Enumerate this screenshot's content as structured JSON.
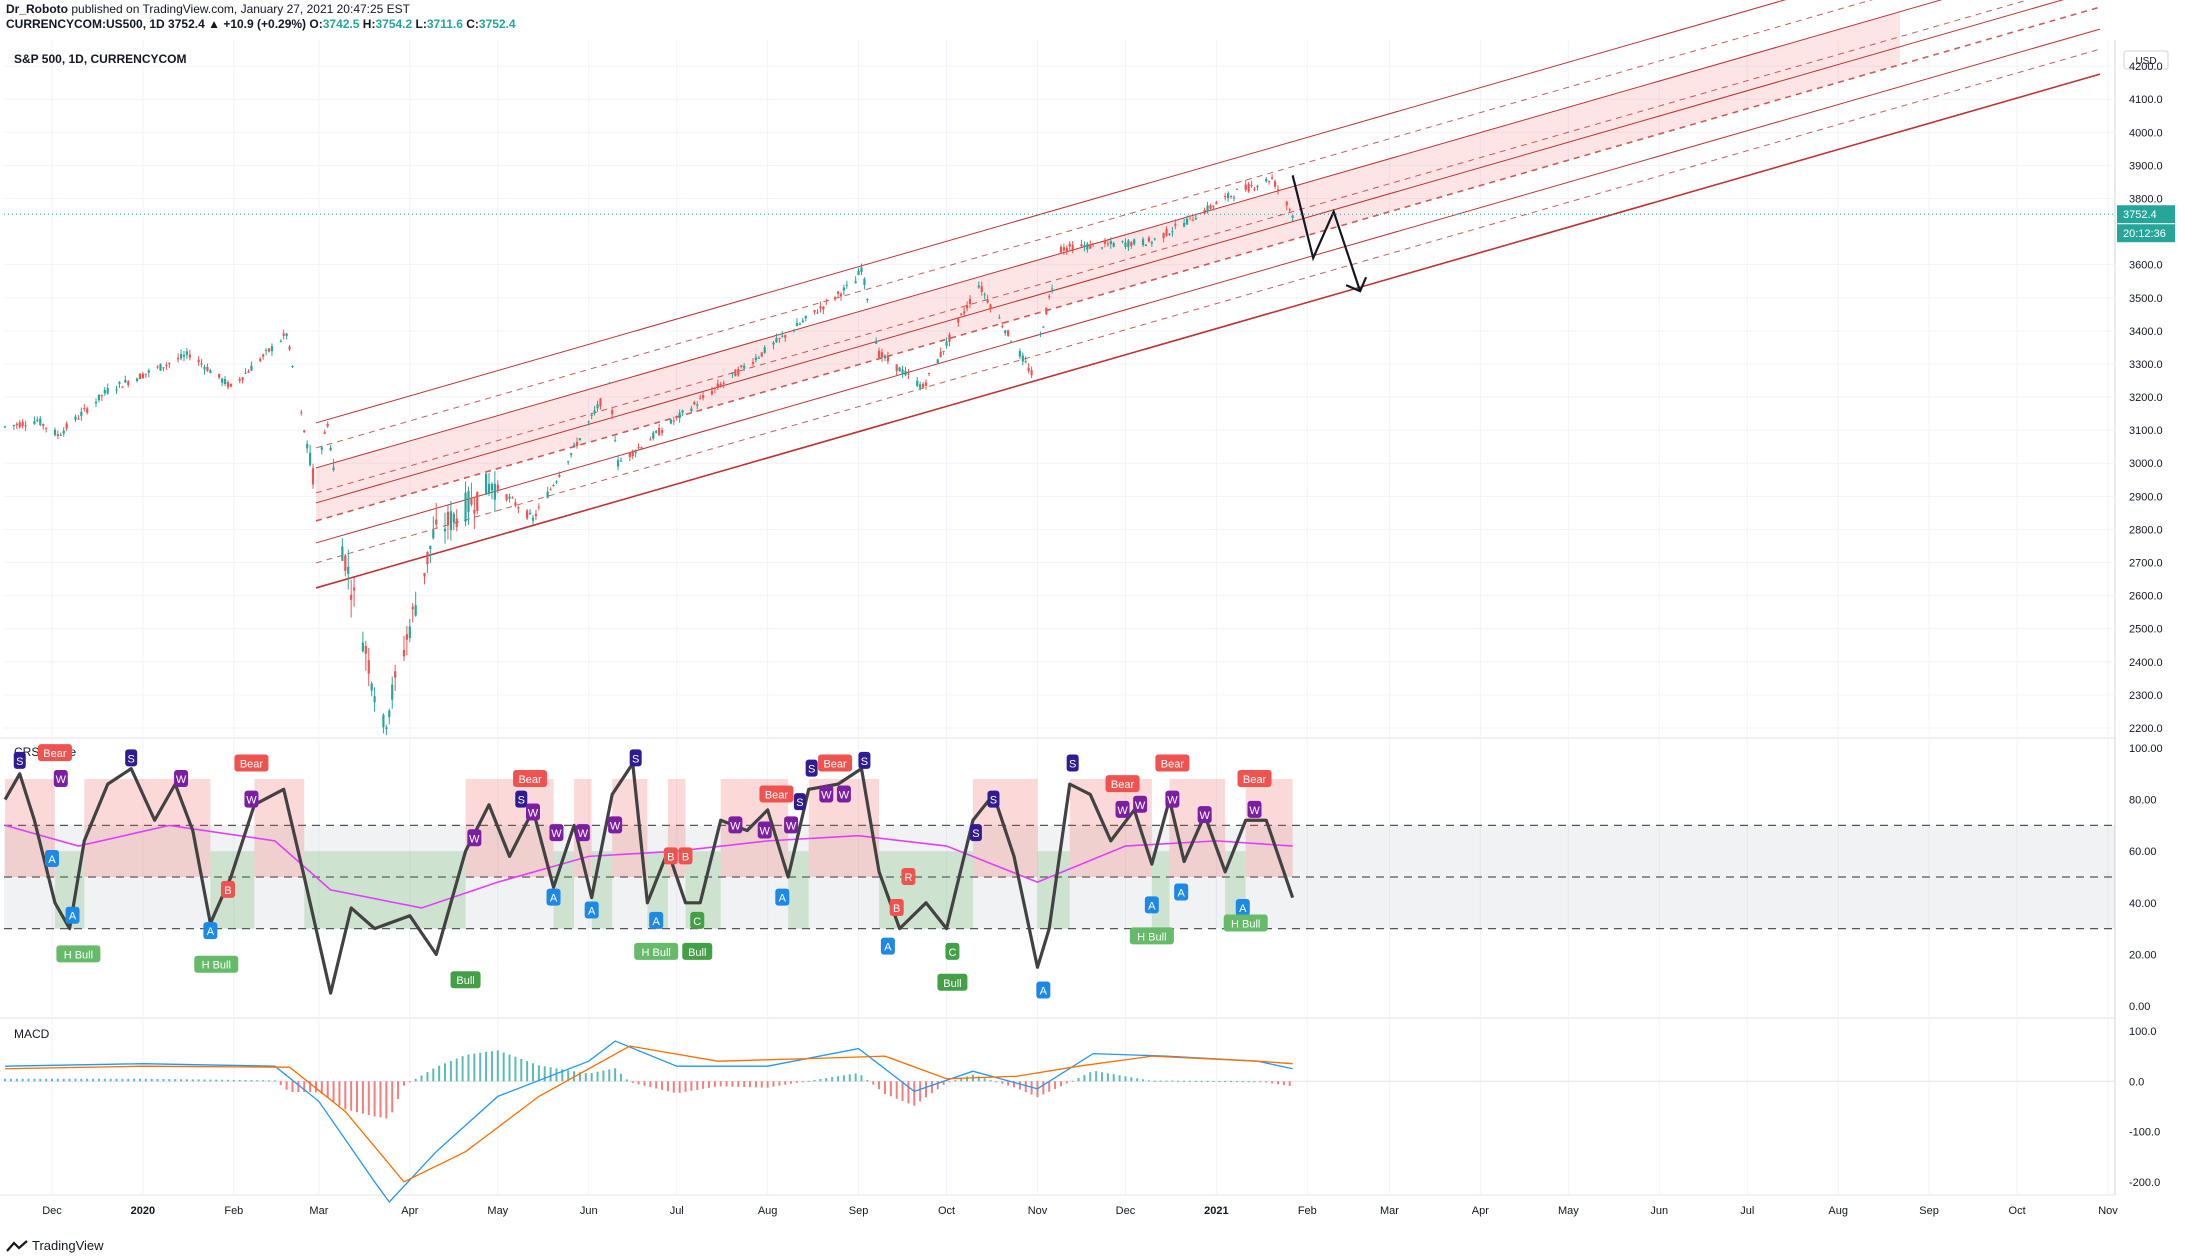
{
  "header": {
    "author": "Dr_Roboto",
    "published": "published on TradingView.com, January 27, 2021 20:47:25 EST",
    "symbol": "CURRENCYCOM:US500, 1D",
    "last": "3752.4",
    "change": "+10.9 (+0.29%)",
    "o_label": "O:",
    "o": "3742.5",
    "h_label": "H:",
    "h": "3754.2",
    "l_label": "L:",
    "l": "3711.6",
    "c_label": "C:",
    "c": "3752.4"
  },
  "chart_data": [
    {
      "type": "candlestick",
      "title": "S&P 500, 1D, CURRENCYCOM",
      "currency": "USD",
      "ylim": [
        2200,
        4300
      ],
      "yticks": [
        "4200.0",
        "4100.0",
        "4000.0",
        "3900.0",
        "3800.0",
        "3600.0",
        "3500.0",
        "3400.0",
        "3300.0",
        "3200.0",
        "3100.0",
        "3000.0",
        "2900.0",
        "2800.0",
        "2700.0",
        "2600.0",
        "2500.0",
        "2400.0",
        "2300.0",
        "2200.0"
      ],
      "price_label": "3752.4",
      "countdown_label": "20:12:36",
      "path_points": [
        [
          "2019-11-15",
          3110
        ],
        [
          "2019-11-26",
          3130
        ],
        [
          "2019-12-03",
          3085
        ],
        [
          "2019-12-20",
          3220
        ],
        [
          "2020-01-17",
          3330
        ],
        [
          "2020-01-31",
          3230
        ],
        [
          "2020-02-19",
          3390
        ],
        [
          "2020-02-28",
          2950
        ],
        [
          "2020-03-04",
          3120
        ],
        [
          "2020-03-09",
          2750
        ],
        [
          "2020-03-23",
          2200
        ],
        [
          "2020-04-09",
          2780
        ],
        [
          "2020-04-29",
          2940
        ],
        [
          "2020-05-13",
          2830
        ],
        [
          "2020-06-08",
          3230
        ],
        [
          "2020-06-11",
          3000
        ],
        [
          "2020-07-15",
          3230
        ],
        [
          "2020-08-31",
          3550
        ],
        [
          "2020-09-02",
          3590
        ],
        [
          "2020-09-08",
          3330
        ],
        [
          "2020-09-23",
          3230
        ],
        [
          "2020-10-12",
          3540
        ],
        [
          "2020-10-30",
          3270
        ],
        [
          "2020-11-09",
          3650
        ],
        [
          "2020-12-10",
          3670
        ],
        [
          "2021-01-08",
          3820
        ],
        [
          "2021-01-20",
          3860
        ],
        [
          "2021-01-27",
          3752
        ]
      ],
      "projection": [
        [
          "2021-01-27",
          3870
        ],
        [
          "2021-02-03",
          3620
        ],
        [
          "2021-02-10",
          3760
        ],
        [
          "2021-02-19",
          3520
        ]
      ]
    },
    {
      "type": "line",
      "title": "CRSI Wave",
      "ylim": [
        0,
        100
      ],
      "yticks": [
        "100.00",
        "80.00",
        "60.00",
        "40.00",
        "20.00",
        "0.00"
      ],
      "bands": [
        30,
        50,
        70
      ],
      "signals": [
        {
          "label": "Bear",
          "x": "2019-12-02",
          "y": 98
        },
        {
          "label": "S",
          "x": "2019-11-20",
          "y": 95
        },
        {
          "label": "W",
          "x": "2019-12-04",
          "y": 88
        },
        {
          "label": "A",
          "x": "2019-12-01",
          "y": 57
        },
        {
          "label": "A",
          "x": "2019-12-08",
          "y": 35
        },
        {
          "label": "H Bull",
          "x": "2019-12-10",
          "y": 20
        },
        {
          "label": "S",
          "x": "2019-12-28",
          "y": 96
        },
        {
          "label": "W",
          "x": "2020-01-14",
          "y": 88
        },
        {
          "label": "Bear",
          "x": "2020-02-07",
          "y": 94
        },
        {
          "label": "W",
          "x": "2020-02-07",
          "y": 80
        },
        {
          "label": "B",
          "x": "2020-01-30",
          "y": 45
        },
        {
          "label": "A",
          "x": "2020-01-24",
          "y": 29
        },
        {
          "label": "H Bull",
          "x": "2020-01-26",
          "y": 16
        },
        {
          "label": "W",
          "x": "2020-04-23",
          "y": 65
        },
        {
          "label": "Bull",
          "x": "2020-04-20",
          "y": 10
        },
        {
          "label": "S",
          "x": "2020-05-09",
          "y": 80
        },
        {
          "label": "W",
          "x": "2020-05-13",
          "y": 75
        },
        {
          "label": "Bear",
          "x": "2020-05-12",
          "y": 88
        },
        {
          "label": "W",
          "x": "2020-05-21",
          "y": 67
        },
        {
          "label": "A",
          "x": "2020-05-20",
          "y": 42
        },
        {
          "label": "W",
          "x": "2020-05-30",
          "y": 67
        },
        {
          "label": "A",
          "x": "2020-06-02",
          "y": 37
        },
        {
          "label": "W",
          "x": "2020-06-10",
          "y": 70
        },
        {
          "label": "S",
          "x": "2020-06-17",
          "y": 96
        },
        {
          "label": "A",
          "x": "2020-06-24",
          "y": 33
        },
        {
          "label": "H Bull",
          "x": "2020-06-24",
          "y": 21
        },
        {
          "label": "B",
          "x": "2020-06-29",
          "y": 58
        },
        {
          "label": "B",
          "x": "2020-07-04",
          "y": 58
        },
        {
          "label": "C",
          "x": "2020-07-08",
          "y": 33
        },
        {
          "label": "Bull",
          "x": "2020-07-08",
          "y": 21
        },
        {
          "label": "W",
          "x": "2020-07-21",
          "y": 70
        },
        {
          "label": "W",
          "x": "2020-07-31",
          "y": 68
        },
        {
          "label": "Bear",
          "x": "2020-08-04",
          "y": 82
        },
        {
          "label": "W",
          "x": "2020-08-09",
          "y": 70
        },
        {
          "label": "S",
          "x": "2020-08-12",
          "y": 79
        },
        {
          "label": "A",
          "x": "2020-08-06",
          "y": 42
        },
        {
          "label": "S",
          "x": "2020-08-16",
          "y": 92
        },
        {
          "label": "W",
          "x": "2020-08-21",
          "y": 82
        },
        {
          "label": "Bear",
          "x": "2020-08-24",
          "y": 94
        },
        {
          "label": "W",
          "x": "2020-08-27",
          "y": 82
        },
        {
          "label": "S",
          "x": "2020-09-03",
          "y": 95
        },
        {
          "label": "R",
          "x": "2020-09-18",
          "y": 50
        },
        {
          "label": "B",
          "x": "2020-09-14",
          "y": 38
        },
        {
          "label": "A",
          "x": "2020-09-11",
          "y": 23
        },
        {
          "label": "C",
          "x": "2020-10-03",
          "y": 21
        },
        {
          "label": "Bull",
          "x": "2020-10-03",
          "y": 9
        },
        {
          "label": "S",
          "x": "2020-10-11",
          "y": 67
        },
        {
          "label": "S",
          "x": "2020-10-17",
          "y": 80
        },
        {
          "label": "A",
          "x": "2020-11-03",
          "y": 6
        },
        {
          "label": "S",
          "x": "2020-11-13",
          "y": 94
        },
        {
          "label": "Bear",
          "x": "2020-11-30",
          "y": 86
        },
        {
          "label": "W",
          "x": "2020-11-30",
          "y": 76
        },
        {
          "label": "W",
          "x": "2020-12-06",
          "y": 78
        },
        {
          "label": "A",
          "x": "2020-12-10",
          "y": 39
        },
        {
          "label": "Bear",
          "x": "2020-12-17",
          "y": 94
        },
        {
          "label": "W",
          "x": "2020-12-17",
          "y": 80
        },
        {
          "label": "H Bull",
          "x": "2020-12-10",
          "y": 27
        },
        {
          "label": "A",
          "x": "2020-12-20",
          "y": 44
        },
        {
          "label": "W",
          "x": "2020-12-28",
          "y": 74
        },
        {
          "label": "A",
          "x": "2021-01-10",
          "y": 38
        },
        {
          "label": "H Bull",
          "x": "2021-01-11",
          "y": 32
        },
        {
          "label": "Bear",
          "x": "2021-01-14",
          "y": 88
        },
        {
          "label": "W",
          "x": "2021-01-14",
          "y": 76
        }
      ],
      "crsi": [
        [
          "2019-11-15",
          80
        ],
        [
          "2019-11-20",
          90
        ],
        [
          "2019-11-25",
          72
        ],
        [
          "2019-12-02",
          40
        ],
        [
          "2019-12-07",
          30
        ],
        [
          "2019-12-12",
          64
        ],
        [
          "2019-12-20",
          86
        ],
        [
          "2019-12-28",
          92
        ],
        [
          "2020-01-05",
          72
        ],
        [
          "2020-01-12",
          86
        ],
        [
          "2020-01-18",
          68
        ],
        [
          "2020-01-24",
          32
        ],
        [
          "2020-01-31",
          50
        ],
        [
          "2020-02-08",
          78
        ],
        [
          "2020-02-18",
          84
        ],
        [
          "2020-02-25",
          50
        ],
        [
          "2020-03-05",
          5
        ],
        [
          "2020-03-12",
          38
        ],
        [
          "2020-03-20",
          30
        ],
        [
          "2020-04-01",
          35
        ],
        [
          "2020-04-10",
          20
        ],
        [
          "2020-04-20",
          60
        ],
        [
          "2020-04-28",
          78
        ],
        [
          "2020-05-05",
          58
        ],
        [
          "2020-05-13",
          76
        ],
        [
          "2020-05-20",
          46
        ],
        [
          "2020-05-27",
          70
        ],
        [
          "2020-06-02",
          42
        ],
        [
          "2020-06-09",
          82
        ],
        [
          "2020-06-16",
          94
        ],
        [
          "2020-06-21",
          40
        ],
        [
          "2020-06-28",
          60
        ],
        [
          "2020-07-04",
          40
        ],
        [
          "2020-07-09",
          40
        ],
        [
          "2020-07-16",
          72
        ],
        [
          "2020-07-25",
          68
        ],
        [
          "2020-08-01",
          76
        ],
        [
          "2020-08-08",
          50
        ],
        [
          "2020-08-15",
          84
        ],
        [
          "2020-08-25",
          86
        ],
        [
          "2020-09-02",
          92
        ],
        [
          "2020-09-08",
          52
        ],
        [
          "2020-09-15",
          30
        ],
        [
          "2020-09-24",
          40
        ],
        [
          "2020-10-01",
          30
        ],
        [
          "2020-10-10",
          72
        ],
        [
          "2020-10-17",
          82
        ],
        [
          "2020-10-24",
          58
        ],
        [
          "2020-11-01",
          15
        ],
        [
          "2020-11-05",
          30
        ],
        [
          "2020-11-12",
          86
        ],
        [
          "2020-11-19",
          82
        ],
        [
          "2020-11-26",
          64
        ],
        [
          "2020-12-04",
          76
        ],
        [
          "2020-12-10",
          55
        ],
        [
          "2020-12-16",
          80
        ],
        [
          "2020-12-21",
          56
        ],
        [
          "2020-12-28",
          74
        ],
        [
          "2021-01-04",
          52
        ],
        [
          "2021-01-11",
          72
        ],
        [
          "2021-01-18",
          72
        ],
        [
          "2021-01-27",
          42
        ]
      ],
      "ma": [
        [
          "2019-11-15",
          70
        ],
        [
          "2019-12-10",
          62
        ],
        [
          "2020-01-10",
          70
        ],
        [
          "2020-02-15",
          64
        ],
        [
          "2020-03-05",
          45
        ],
        [
          "2020-04-05",
          38
        ],
        [
          "2020-05-01",
          48
        ],
        [
          "2020-06-01",
          58
        ],
        [
          "2020-07-01",
          60
        ],
        [
          "2020-08-01",
          64
        ],
        [
          "2020-09-01",
          66
        ],
        [
          "2020-10-01",
          62
        ],
        [
          "2020-11-01",
          48
        ],
        [
          "2020-12-01",
          62
        ],
        [
          "2021-01-01",
          64
        ],
        [
          "2021-01-27",
          62
        ]
      ]
    },
    {
      "type": "bar",
      "title": "MACD",
      "ylim": [
        -250,
        100
      ],
      "yticks": [
        "100.0",
        "0.0",
        "-100.0",
        "-200.0"
      ],
      "macd_line": [
        [
          "2019-11-15",
          30
        ],
        [
          "2020-01-01",
          35
        ],
        [
          "2020-02-15",
          30
        ],
        [
          "2020-03-01",
          -40
        ],
        [
          "2020-03-20",
          -200
        ],
        [
          "2020-03-25",
          -240
        ],
        [
          "2020-04-10",
          -140
        ],
        [
          "2020-05-01",
          -30
        ],
        [
          "2020-06-01",
          40
        ],
        [
          "2020-06-10",
          80
        ],
        [
          "2020-07-01",
          30
        ],
        [
          "2020-08-01",
          30
        ],
        [
          "2020-09-01",
          65
        ],
        [
          "2020-09-20",
          -20
        ],
        [
          "2020-10-10",
          20
        ],
        [
          "2020-11-01",
          -15
        ],
        [
          "2020-11-20",
          55
        ],
        [
          "2020-12-15",
          50
        ],
        [
          "2021-01-15",
          40
        ],
        [
          "2021-01-27",
          25
        ]
      ],
      "signal_line": [
        [
          "2019-11-15",
          25
        ],
        [
          "2020-01-01",
          30
        ],
        [
          "2020-02-20",
          28
        ],
        [
          "2020-03-10",
          -60
        ],
        [
          "2020-03-30",
          -200
        ],
        [
          "2020-04-20",
          -140
        ],
        [
          "2020-05-15",
          -30
        ],
        [
          "2020-06-15",
          70
        ],
        [
          "2020-07-15",
          40
        ],
        [
          "2020-08-15",
          45
        ],
        [
          "2020-09-10",
          50
        ],
        [
          "2020-10-01",
          5
        ],
        [
          "2020-10-25",
          10
        ],
        [
          "2020-11-15",
          30
        ],
        [
          "2020-12-10",
          50
        ],
        [
          "2021-01-15",
          40
        ],
        [
          "2021-01-27",
          35
        ]
      ]
    }
  ],
  "time_axis": {
    "labels": [
      "Dec",
      "2020",
      "Feb",
      "Mar",
      "Apr",
      "May",
      "Jun",
      "Jul",
      "Aug",
      "Sep",
      "Oct",
      "Nov",
      "Dec",
      "2021",
      "Feb",
      "Mar",
      "Apr",
      "May",
      "Jun",
      "Jul",
      "Aug",
      "Sep",
      "Oct",
      "Nov"
    ],
    "dates": [
      "2019-12-01",
      "2020-01-01",
      "2020-02-01",
      "2020-03-01",
      "2020-04-01",
      "2020-05-01",
      "2020-06-01",
      "2020-07-01",
      "2020-08-01",
      "2020-09-01",
      "2020-10-01",
      "2020-11-01",
      "2020-12-01",
      "2021-01-01",
      "2021-02-01",
      "2021-03-01",
      "2021-04-01",
      "2021-05-01",
      "2021-06-01",
      "2021-07-01",
      "2021-08-01",
      "2021-09-01",
      "2021-10-01",
      "2021-11-01"
    ],
    "bold": [
      "2020",
      "2021"
    ]
  },
  "footer": {
    "brand": "TradingView"
  },
  "colors": {
    "up": "#26a69a",
    "down": "#ef5350",
    "channel": "#b71c1c",
    "crsi": "#424242",
    "ma": "#e040fb",
    "macd": "#2196f3",
    "signal": "#ff6d00"
  }
}
